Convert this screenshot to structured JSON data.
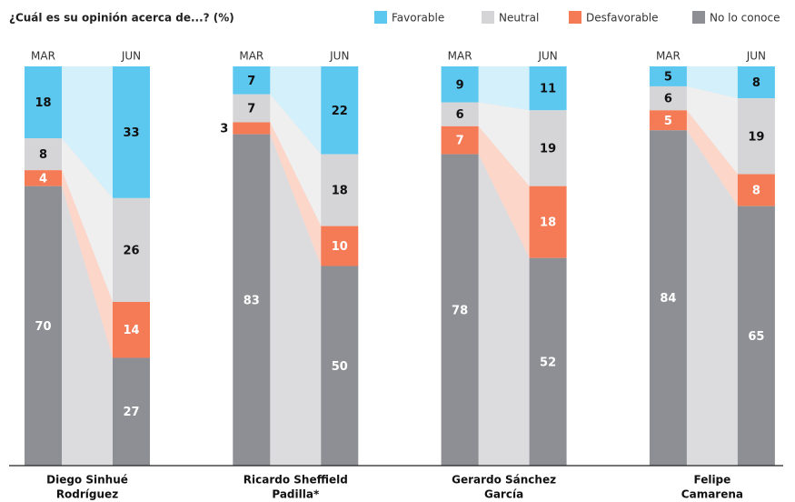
{
  "chart_data": {
    "type": "bar",
    "stacked": true,
    "title": "¿Cuál es su opinión acerca de...? (%)",
    "periods": [
      "MAR",
      "JUN"
    ],
    "categories": [
      [
        "Diego Sinhué",
        "Rodríguez"
      ],
      [
        "Ricardo Sheffield",
        "Padilla*"
      ],
      [
        "Gerardo Sánchez",
        "García"
      ],
      [
        "Felipe",
        "Camarena"
      ]
    ],
    "series": [
      {
        "name": "Favorable",
        "color": "#5cc8f0",
        "link_color": "#d3f0fb",
        "label_color": "#111111",
        "values": [
          [
            18,
            33
          ],
          [
            7,
            22
          ],
          [
            9,
            11
          ],
          [
            5,
            8
          ]
        ]
      },
      {
        "name": "Neutral",
        "color": "#d5d5d7",
        "link_color": "#efefef",
        "label_color": "#111111",
        "values": [
          [
            8,
            26
          ],
          [
            7,
            18
          ],
          [
            6,
            19
          ],
          [
            6,
            19
          ]
        ]
      },
      {
        "name": "Desfavorable",
        "color": "#f47b56",
        "link_color": "#fcd6c9",
        "label_color": "#ffffff",
        "values": [
          [
            4,
            14
          ],
          [
            3,
            10
          ],
          [
            7,
            18
          ],
          [
            5,
            8
          ]
        ]
      },
      {
        "name": "No lo conoce",
        "color": "#8e8f94",
        "link_color": "#dcdcdf",
        "label_color": "#ffffff",
        "values": [
          [
            70,
            27
          ],
          [
            83,
            50
          ],
          [
            78,
            52
          ],
          [
            84,
            65
          ]
        ]
      }
    ],
    "ylim": [
      0,
      100
    ],
    "legend": "top"
  }
}
